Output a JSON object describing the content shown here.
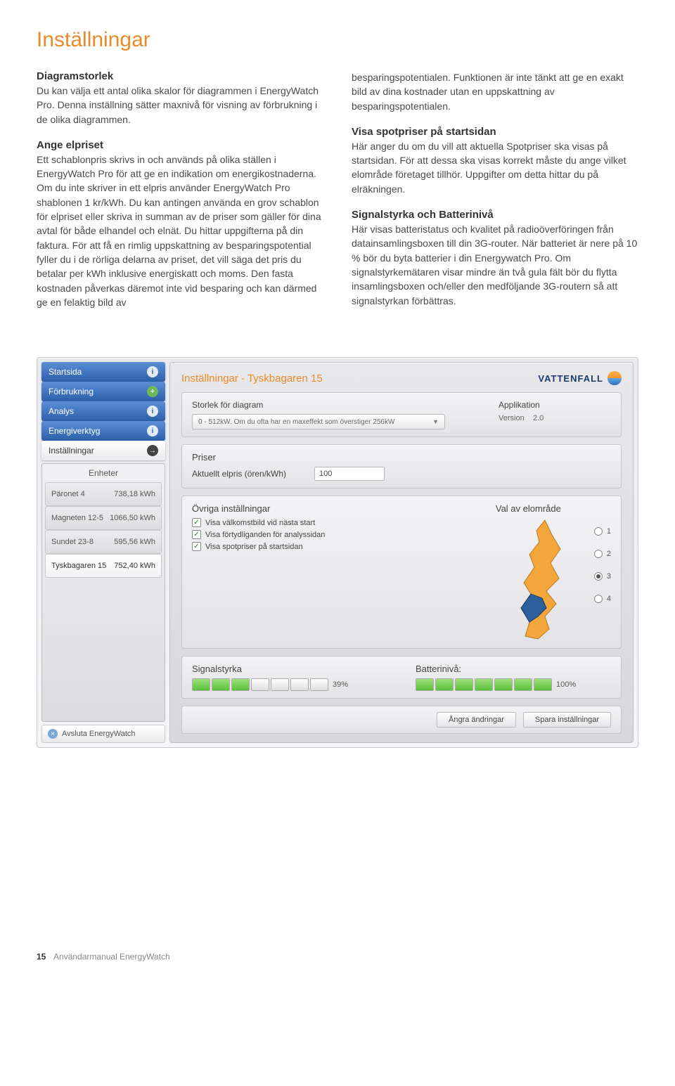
{
  "page": {
    "title": "Inställningar",
    "footer_page": "15",
    "footer_text": "Användarmanual EnergyWatch"
  },
  "col_left": {
    "h1": "Diagramstorlek",
    "p1": "Du kan välja ett antal olika skalor för diagrammen i EnergyWatch Pro. Denna inställning sätter maxnivå för visning av förbrukning i de olika diagrammen.",
    "h2": "Ange elpriset",
    "p2": "Ett schablonpris skrivs in och används på olika ställen i EnergyWatch Pro för att ge en indikation om energikostnaderna. Om du inte skriver in ett elpris använder EnergyWatch Pro shablonen 1 kr/kWh. Du kan antingen använda en grov schablon för elpriset eller skriva in summan av de priser som gäller för dina avtal för både elhandel och elnät. Du hittar uppgifterna på din faktura. För att få en rimlig uppskattning av besparingspotential fyller du i de rörliga delarna av priset, det vill säga det pris du betalar per kWh inklusive energiskatt och moms. Den fasta kostnaden påverkas däremot inte vid besparing och kan därmed ge en felaktig bild av"
  },
  "col_right": {
    "p0": "besparingspotentialen. Funktionen är inte tänkt att ge en exakt bild av dina kostnader utan en uppskattning av besparingspotentialen.",
    "h1": "Visa spotpriser på startsidan",
    "p1": "Här anger du om du vill att aktuella Spotpriser ska visas på startsidan. För att dessa ska visas korrekt måste du ange vilket elområde företaget tillhör. Uppgifter om detta hittar du på elräkningen.",
    "h2": "Signalstyrka och Batterinivå",
    "p2": "Här visas batteristatus och kvalitet på radioöverföringen från datainsamlingsboxen till din 3G-router. När batteriet är nere på 10 % bör du byta batterier i din Energywatch Pro. Om signalstyrkemätaren visar mindre än två gula fält bör du flytta insamlingsboxen och/eller den medföljande 3G-routern så att signalstyrkan förbättras."
  },
  "app": {
    "logo_text": "VATTENFALL",
    "breadcrumb": "Inställningar - Tyskbagaren 15",
    "nav": [
      {
        "label": "Startsida",
        "icon": "i"
      },
      {
        "label": "Förbrukning",
        "icon": "+",
        "green": true
      },
      {
        "label": "Analys",
        "icon": "i"
      },
      {
        "label": "Energiverktyg",
        "icon": "i"
      }
    ],
    "nav_active": {
      "label": "Inställningar",
      "icon": "→"
    },
    "units_header": "Enheter",
    "units": [
      {
        "name": "Päronet 4",
        "value": "738,18 kWh"
      },
      {
        "name": "Magneten 12-5",
        "value": "1066,50 kWh"
      },
      {
        "name": "Sundet 23-8",
        "value": "595,56 kWh"
      },
      {
        "name": "Tyskbagaren 15",
        "value": "752,40 kWh",
        "active": true
      }
    ],
    "avsluta": "Avsluta EnergyWatch",
    "panel_size": {
      "label": "Storlek för diagram",
      "select": "0 - 512kW. Om du ofta har en maxeffekt som överstiger 256kW",
      "app_label": "Applikation",
      "version_label": "Version",
      "version_value": "2.0"
    },
    "panel_price": {
      "heading": "Priser",
      "label": "Aktuellt elpris (ören/kWh)",
      "value": "100"
    },
    "panel_misc": {
      "heading": "Övriga inställningar",
      "chk1": "Visa välkomstbild vid nästa start",
      "chk2": "Visa förtydliganden för analyssidan",
      "chk3": "Visa spotpriser på startsidan",
      "area_heading": "Val av elområde",
      "radios": [
        "1",
        "2",
        "3",
        "4"
      ],
      "selected_radio": 2
    },
    "panel_signal": {
      "sig_label": "Signalstyrka",
      "sig_value": "39%",
      "sig_segments": 7,
      "sig_filled": 3,
      "bat_label": "Batterinivå:",
      "bat_value": "100%",
      "bat_segments": 7,
      "bat_filled": 7
    },
    "actions": {
      "cancel": "Ångra ändringar",
      "save": "Spara inställningar"
    }
  },
  "colors": {
    "accent_orange": "#e88b2a",
    "nav_blue_top": "#5b8fd6",
    "nav_blue_bottom": "#2b5fa8",
    "seg_green": "#5bbf3a",
    "map_orange": "#f2a63c",
    "map_blue": "#2d5f9b"
  }
}
